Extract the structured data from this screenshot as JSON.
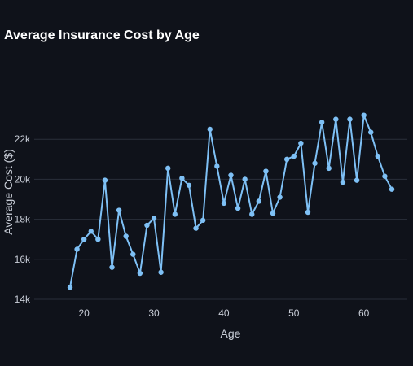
{
  "chart_data": {
    "type": "line",
    "title": "Average Insurance Cost by Age",
    "xlabel": "Age",
    "ylabel": "Average Cost ($)",
    "xlim": [
      18,
      64
    ],
    "ylim": [
      14000,
      24000
    ],
    "xticks": [
      20,
      30,
      40,
      50,
      60
    ],
    "yticks": [
      14000,
      16000,
      18000,
      20000,
      22000
    ],
    "ytick_labels": [
      "14k",
      "16k",
      "18k",
      "20k",
      "22k"
    ],
    "grid": "horizontal",
    "series": [
      {
        "color": "#7ec0f5",
        "x": [
          18,
          19,
          20,
          21,
          22,
          23,
          24,
          25,
          26,
          27,
          28,
          29,
          30,
          31,
          32,
          33,
          34,
          35,
          36,
          37,
          38,
          39,
          40,
          41,
          42,
          43,
          44,
          45,
          46,
          47,
          48,
          49,
          50,
          51,
          52,
          53,
          54,
          55,
          56,
          57,
          58,
          59,
          60,
          61,
          62,
          63,
          64
        ],
        "y": [
          14600,
          16500,
          17000,
          17400,
          17000,
          19950,
          15600,
          18450,
          17150,
          16250,
          15300,
          17700,
          18050,
          15350,
          20550,
          18250,
          20050,
          19700,
          17550,
          17950,
          22500,
          20650,
          18800,
          20200,
          18550,
          20000,
          18250,
          18900,
          20400,
          18300,
          19100,
          21000,
          21150,
          21800,
          18350,
          20800,
          22850,
          20550,
          23000,
          19850,
          23000,
          19950,
          23200,
          22350,
          21150,
          20150,
          19500
        ]
      }
    ]
  }
}
